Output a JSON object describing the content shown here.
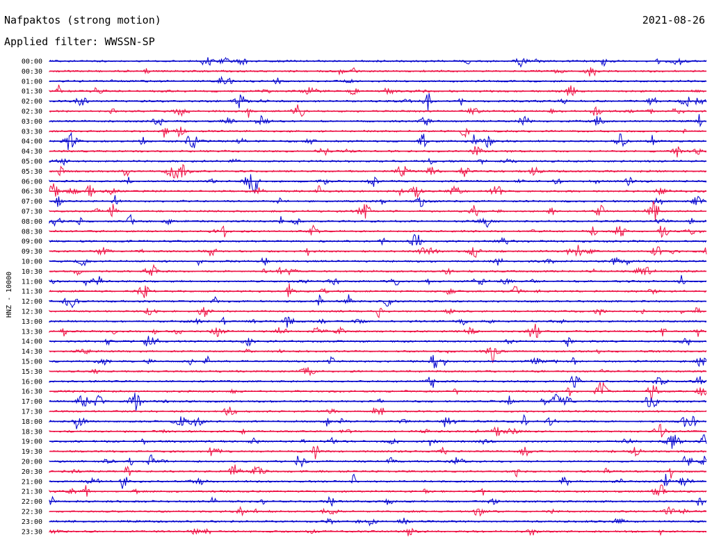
{
  "header": {
    "title": "Nafpaktos (strong motion)",
    "date": "2021-08-26",
    "filter": "Applied filter: WWSSN-SP"
  },
  "chart_data": {
    "type": "line",
    "title": "Nafpaktos (strong motion)",
    "ylabel": "HNZ - 10000",
    "xlabel": "",
    "rows": [
      "00:00",
      "00:30",
      "01:00",
      "01:30",
      "02:00",
      "02:30",
      "03:00",
      "03:30",
      "04:00",
      "04:30",
      "05:00",
      "05:30",
      "06:00",
      "06:30",
      "07:00",
      "07:30",
      "08:00",
      "08:30",
      "09:00",
      "09:30",
      "10:00",
      "10:30",
      "11:00",
      "11:30",
      "12:00",
      "12:30",
      "13:00",
      "13:30",
      "14:00",
      "14:30",
      "15:00",
      "15:30",
      "16:00",
      "16:30",
      "17:00",
      "17:30",
      "18:00",
      "18:30",
      "19:00",
      "19:30",
      "20:00",
      "20:30",
      "21:00",
      "21:30",
      "22:00",
      "22:30",
      "23:00",
      "23:30"
    ],
    "colors": [
      "#0000cc",
      "#ee1144"
    ],
    "grid": false,
    "legend": "none"
  }
}
